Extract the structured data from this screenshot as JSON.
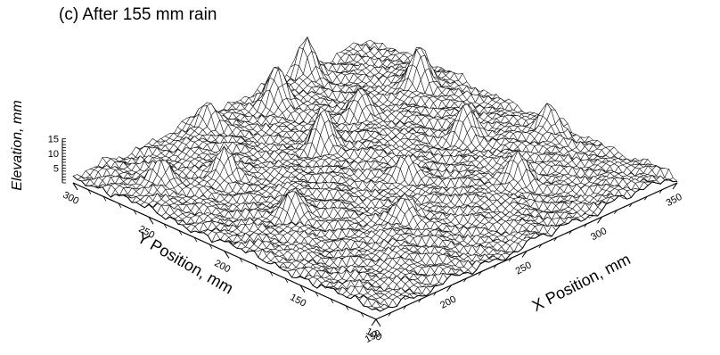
{
  "chart_data": {
    "type": "surface",
    "title": "(c) After 155 mm rain",
    "xlabel": "X Position, mm",
    "ylabel": "Y Position, mm",
    "zlabel": "Elevation, mm",
    "x_ticks": [
      "150",
      "200",
      "250",
      "300",
      "350"
    ],
    "y_ticks": [
      "100",
      "150",
      "200",
      "250",
      "300"
    ],
    "z_ticks": [
      "5",
      "10",
      "15"
    ],
    "xlim": [
      150,
      350
    ],
    "ylim": [
      100,
      300
    ],
    "zlim": [
      0,
      15
    ],
    "peaks": [
      {
        "x": 255,
        "y": 240,
        "z": 14
      },
      {
        "x": 270,
        "y": 285,
        "z": 12
      },
      {
        "x": 300,
        "y": 295,
        "z": 13
      },
      {
        "x": 330,
        "y": 250,
        "z": 14
      },
      {
        "x": 310,
        "y": 200,
        "z": 11
      },
      {
        "x": 200,
        "y": 250,
        "z": 10
      },
      {
        "x": 175,
        "y": 265,
        "z": 7
      },
      {
        "x": 195,
        "y": 200,
        "z": 8
      },
      {
        "x": 230,
        "y": 160,
        "z": 8
      },
      {
        "x": 295,
        "y": 150,
        "z": 9
      },
      {
        "x": 260,
        "y": 190,
        "z": 7
      },
      {
        "x": 340,
        "y": 175,
        "z": 9
      },
      {
        "x": 290,
        "y": 250,
        "z": 9
      },
      {
        "x": 230,
        "y": 290,
        "z": 8
      }
    ]
  }
}
